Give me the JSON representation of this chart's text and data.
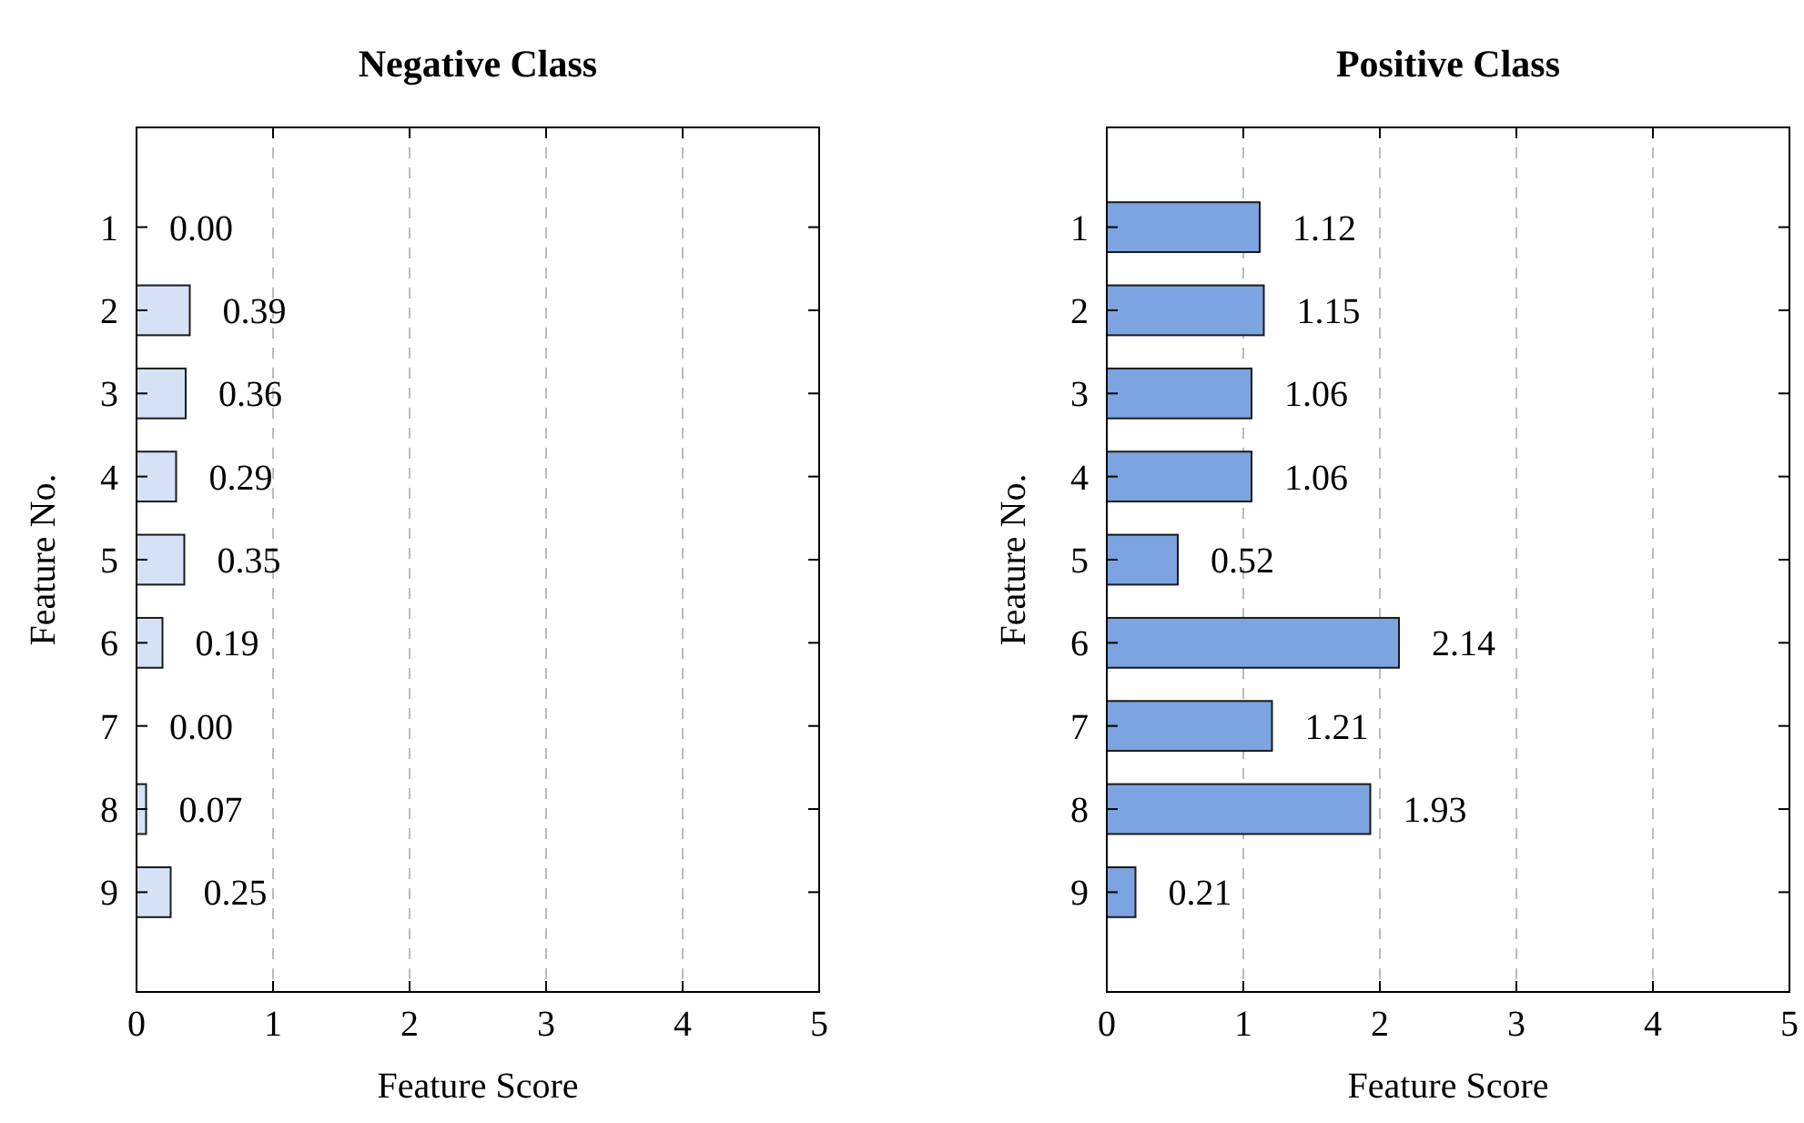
{
  "chart_data": [
    {
      "type": "bar",
      "orientation": "horizontal",
      "title": "Negative Class",
      "xlabel": "Feature Score",
      "ylabel": "Feature No.",
      "categories": [
        "1",
        "2",
        "3",
        "4",
        "5",
        "6",
        "7",
        "8",
        "9"
      ],
      "series": [
        {
          "color": "#d5e2f6",
          "values": [
            0,
            0.39,
            0.36,
            0.29,
            0.35,
            0.19,
            0,
            0.07,
            0.25
          ],
          "value_labels": [
            "0.00",
            "0.39",
            "0.36",
            "0.29",
            "0.35",
            "0.19",
            "0.00",
            "0.07",
            "0.25"
          ]
        }
      ],
      "xlim": [
        0,
        5
      ],
      "xticks": [
        0,
        1,
        2,
        3,
        4,
        5
      ],
      "grid": "x"
    },
    {
      "type": "bar",
      "orientation": "horizontal",
      "title": "Positive Class",
      "xlabel": "Feature Score",
      "ylabel": "Feature No.",
      "categories": [
        "1",
        "2",
        "3",
        "4",
        "5",
        "6",
        "7",
        "8",
        "9"
      ],
      "series": [
        {
          "color": "#7ba4e0",
          "values": [
            1.12,
            1.15,
            1.06,
            1.06,
            0.52,
            2.14,
            1.21,
            1.93,
            0.21
          ],
          "value_labels": [
            "1.12",
            "1.15",
            "1.06",
            "1.06",
            "0.52",
            "2.14",
            "1.21",
            "1.93",
            "0.21"
          ]
        }
      ],
      "xlim": [
        0,
        5
      ],
      "xticks": [
        0,
        1,
        2,
        3,
        4,
        5
      ],
      "grid": "x"
    }
  ]
}
